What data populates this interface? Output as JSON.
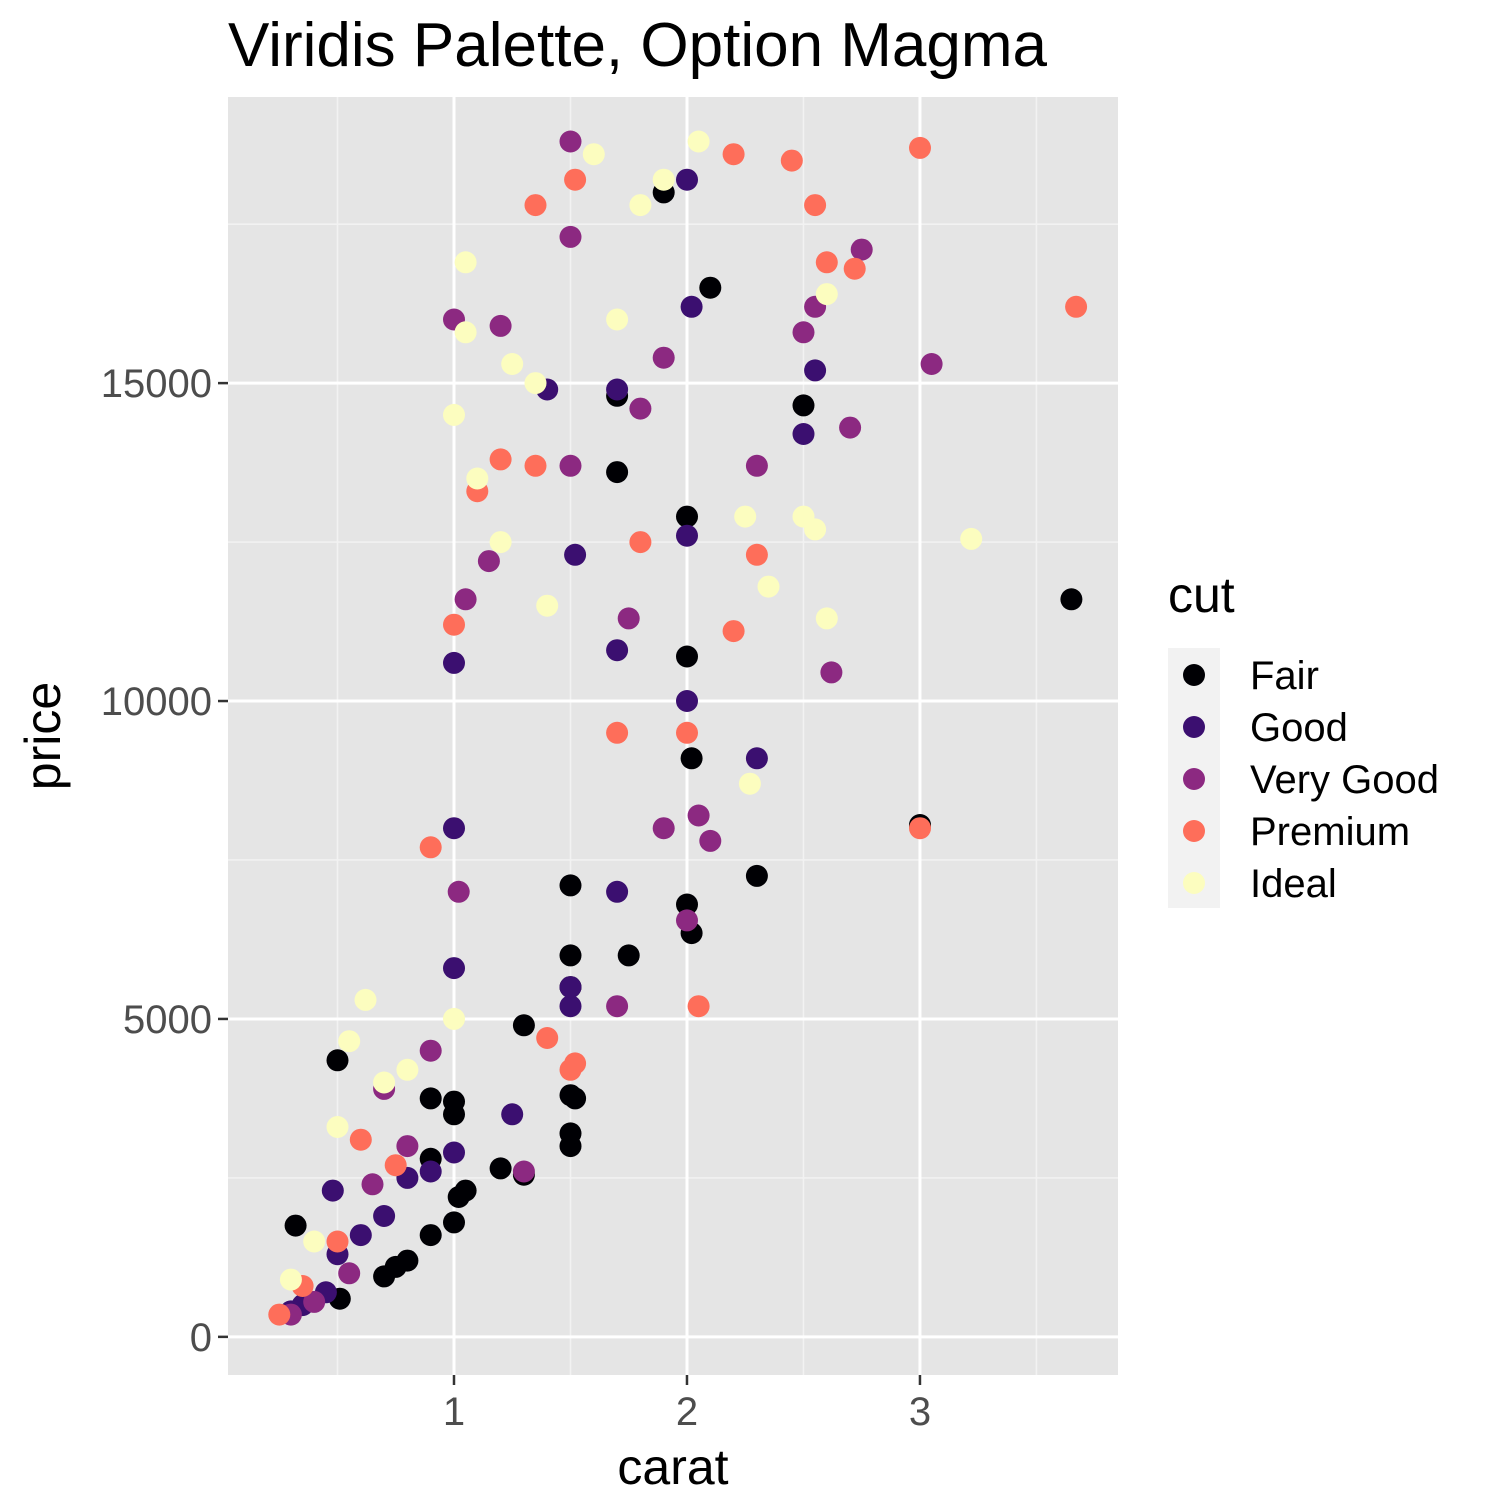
{
  "chart_data": {
    "type": "scatter",
    "title": "Viridis Palette, Option Magma",
    "xlabel": "carat",
    "ylabel": "price",
    "xlim": [
      0.03,
      3.85
    ],
    "ylim": [
      -600,
      19500
    ],
    "x_ticks": [
      1,
      2,
      3
    ],
    "x_tick_labels": [
      "1",
      "2",
      "3"
    ],
    "y_ticks": [
      0,
      5000,
      10000,
      15000
    ],
    "y_tick_labels": [
      "0",
      "5000",
      "10000",
      "15000"
    ],
    "grid": true,
    "panel_color": "#e5e5e5",
    "legend": {
      "title": "cut",
      "placement": "right",
      "entries": [
        {
          "label": "Fair",
          "color": "#000004"
        },
        {
          "label": "Good",
          "color": "#3b0f70"
        },
        {
          "label": "Very Good",
          "color": "#8c2981"
        },
        {
          "label": "Premium",
          "color": "#fe6e5a"
        },
        {
          "label": "Ideal",
          "color": "#fcfdbf"
        }
      ]
    },
    "series": [
      {
        "name": "Fair",
        "color": "#000004",
        "points": [
          [
            0.32,
            1750
          ],
          [
            0.5,
            4350
          ],
          [
            0.51,
            600
          ],
          [
            0.7,
            950
          ],
          [
            0.75,
            1100
          ],
          [
            0.8,
            1200
          ],
          [
            0.9,
            1600
          ],
          [
            0.9,
            2800
          ],
          [
            0.9,
            3750
          ],
          [
            1.0,
            1800
          ],
          [
            1.0,
            3500
          ],
          [
            1.0,
            3700
          ],
          [
            1.02,
            2200
          ],
          [
            1.05,
            2300
          ],
          [
            1.2,
            2650
          ],
          [
            1.3,
            2550
          ],
          [
            1.3,
            4900
          ],
          [
            1.5,
            3000
          ],
          [
            1.5,
            3200
          ],
          [
            1.5,
            3800
          ],
          [
            1.52,
            3750
          ],
          [
            1.5,
            5500
          ],
          [
            1.5,
            6000
          ],
          [
            1.5,
            7100
          ],
          [
            1.75,
            6000
          ],
          [
            1.7,
            13600
          ],
          [
            1.7,
            14800
          ],
          [
            1.9,
            18000
          ],
          [
            2.0,
            6800
          ],
          [
            2.02,
            6350
          ],
          [
            2.0,
            10700
          ],
          [
            2.0,
            12900
          ],
          [
            2.02,
            9100
          ],
          [
            2.1,
            16500
          ],
          [
            2.3,
            7250
          ],
          [
            2.5,
            14650
          ],
          [
            3.0,
            8050
          ],
          [
            3.65,
            11600
          ]
        ]
      },
      {
        "name": "Good",
        "color": "#3b0f70",
        "points": [
          [
            0.3,
            400
          ],
          [
            0.35,
            500
          ],
          [
            0.45,
            700
          ],
          [
            0.5,
            1300
          ],
          [
            0.6,
            1600
          ],
          [
            0.7,
            1900
          ],
          [
            0.8,
            2500
          ],
          [
            0.9,
            2600
          ],
          [
            1.0,
            2900
          ],
          [
            1.0,
            5800
          ],
          [
            1.0,
            8000
          ],
          [
            1.0,
            10600
          ],
          [
            1.25,
            3500
          ],
          [
            1.5,
            5200
          ],
          [
            1.5,
            5500
          ],
          [
            1.52,
            12300
          ],
          [
            1.7,
            7000
          ],
          [
            1.7,
            10800
          ],
          [
            1.7,
            14900
          ],
          [
            2.0,
            10000
          ],
          [
            2.0,
            12600
          ],
          [
            2.02,
            16200
          ],
          [
            2.0,
            18200
          ],
          [
            2.3,
            9100
          ],
          [
            2.5,
            14200
          ],
          [
            2.55,
            15200
          ],
          [
            1.4,
            14900
          ],
          [
            0.48,
            2300
          ]
        ]
      },
      {
        "name": "Very Good",
        "color": "#8c2981",
        "points": [
          [
            0.3,
            350
          ],
          [
            0.4,
            550
          ],
          [
            0.55,
            1000
          ],
          [
            0.65,
            2400
          ],
          [
            0.7,
            3900
          ],
          [
            0.8,
            3000
          ],
          [
            0.9,
            4500
          ],
          [
            1.0,
            16000
          ],
          [
            1.02,
            7000
          ],
          [
            1.05,
            11600
          ],
          [
            1.15,
            12200
          ],
          [
            1.2,
            15900
          ],
          [
            1.3,
            2600
          ],
          [
            1.5,
            17300
          ],
          [
            1.5,
            18800
          ],
          [
            1.5,
            13700
          ],
          [
            1.7,
            5200
          ],
          [
            1.75,
            11300
          ],
          [
            1.8,
            14600
          ],
          [
            1.9,
            15400
          ],
          [
            2.0,
            6550
          ],
          [
            2.05,
            8200
          ],
          [
            2.1,
            7800
          ],
          [
            2.3,
            13700
          ],
          [
            2.5,
            15800
          ],
          [
            2.55,
            16200
          ],
          [
            2.7,
            14300
          ],
          [
            2.75,
            17100
          ],
          [
            2.62,
            10450
          ],
          [
            3.05,
            15300
          ],
          [
            1.9,
            8000
          ]
        ]
      },
      {
        "name": "Premium",
        "color": "#fe6e5a",
        "points": [
          [
            0.25,
            350
          ],
          [
            0.35,
            800
          ],
          [
            0.5,
            1500
          ],
          [
            0.6,
            3100
          ],
          [
            0.75,
            2700
          ],
          [
            0.9,
            7700
          ],
          [
            1.0,
            11200
          ],
          [
            1.1,
            13300
          ],
          [
            1.2,
            13800
          ],
          [
            1.35,
            13700
          ],
          [
            1.35,
            17800
          ],
          [
            1.5,
            4200
          ],
          [
            1.52,
            4300
          ],
          [
            1.52,
            18200
          ],
          [
            1.7,
            9500
          ],
          [
            1.8,
            12500
          ],
          [
            2.0,
            9500
          ],
          [
            2.05,
            5200
          ],
          [
            2.2,
            11100
          ],
          [
            2.3,
            12300
          ],
          [
            2.45,
            18500
          ],
          [
            2.55,
            17800
          ],
          [
            2.6,
            16900
          ],
          [
            2.72,
            16800
          ],
          [
            3.0,
            18700
          ],
          [
            3.0,
            8000
          ],
          [
            3.67,
            16200
          ],
          [
            2.2,
            18600
          ],
          [
            1.4,
            4700
          ]
        ]
      },
      {
        "name": "Ideal",
        "color": "#fcfdbf",
        "points": [
          [
            0.3,
            900
          ],
          [
            0.4,
            1500
          ],
          [
            0.5,
            3300
          ],
          [
            0.55,
            4650
          ],
          [
            0.62,
            5300
          ],
          [
            0.7,
            4000
          ],
          [
            0.8,
            4200
          ],
          [
            1.0,
            5000
          ],
          [
            1.0,
            14500
          ],
          [
            1.05,
            15800
          ],
          [
            1.05,
            16900
          ],
          [
            1.1,
            13500
          ],
          [
            1.2,
            12500
          ],
          [
            1.25,
            15300
          ],
          [
            1.35,
            15000
          ],
          [
            1.4,
            11500
          ],
          [
            1.6,
            18600
          ],
          [
            1.7,
            16000
          ],
          [
            1.8,
            17800
          ],
          [
            2.05,
            18800
          ],
          [
            2.25,
            12900
          ],
          [
            2.35,
            11800
          ],
          [
            2.5,
            12900
          ],
          [
            2.55,
            12700
          ],
          [
            2.6,
            16400
          ],
          [
            3.22,
            12550
          ],
          [
            2.6,
            11300
          ],
          [
            2.27,
            8700
          ],
          [
            1.9,
            18200
          ]
        ]
      }
    ]
  }
}
